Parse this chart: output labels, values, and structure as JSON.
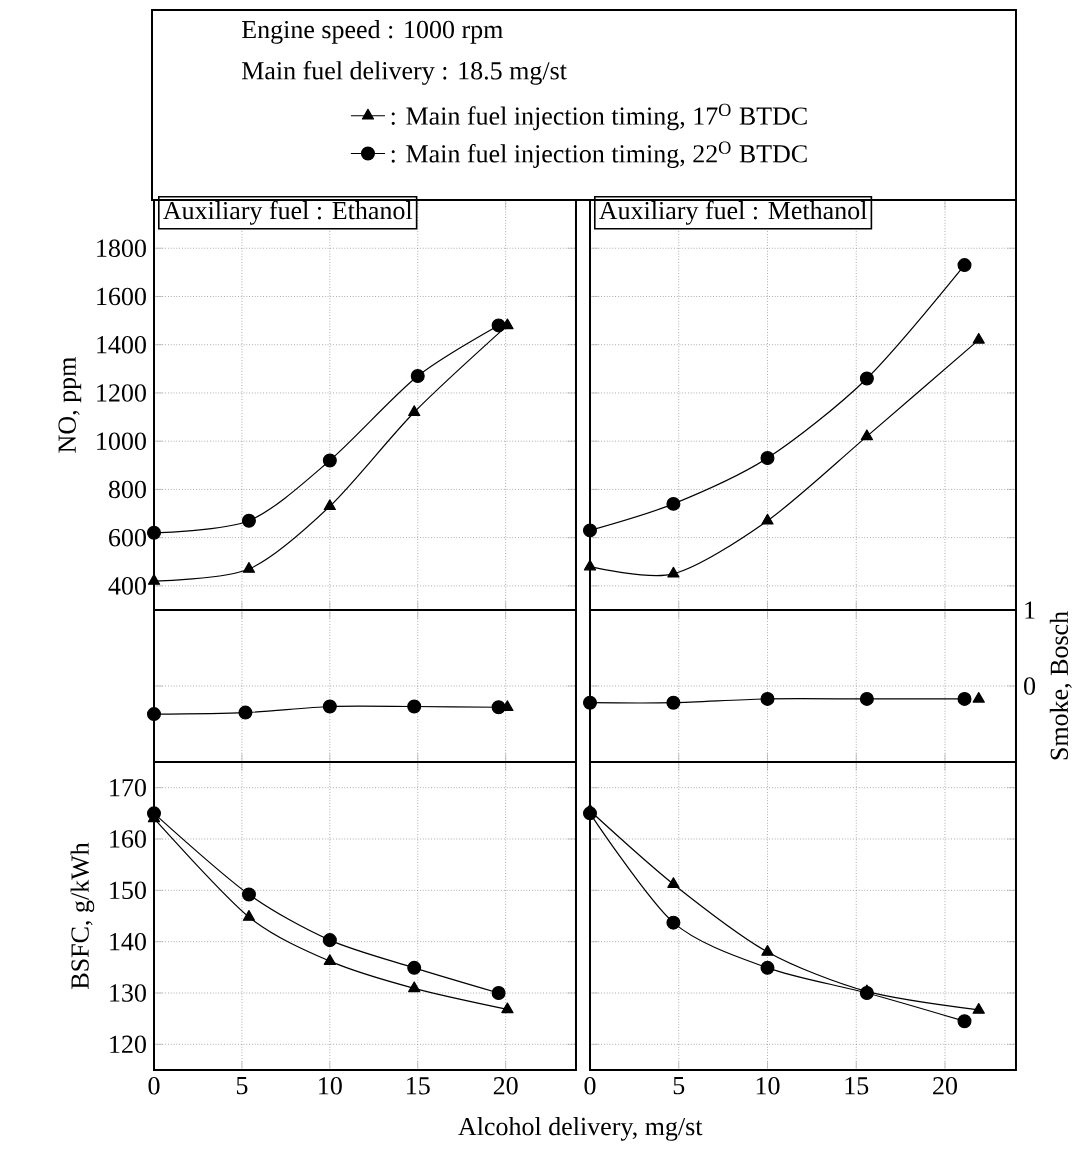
{
  "chart_data": [
    {
      "type": "line",
      "title": "Auxiliary fuel : Ethanol",
      "ylabel": "NO, ppm",
      "annotations": [
        "Engine speed : 1000 rpm",
        "Main fuel delivery : 18.5 mg/st"
      ],
      "legend": "top",
      "xlim": [
        0,
        24
      ],
      "xticks": [
        0,
        5,
        10,
        15,
        20
      ],
      "ylim": [
        300,
        2000
      ],
      "yticks": [
        400,
        600,
        800,
        1000,
        1200,
        1400,
        1600,
        1800
      ],
      "grid": true,
      "tick_labels": "y",
      "line_style": "solid",
      "series": [
        {
          "name": ": Main fuel injection timing, 17$^{O}$ BTDC",
          "color": "#000000",
          "marker": "triangle",
          "x": [
            0,
            5.4,
            10,
            14.8,
            20.1
          ],
          "values": [
            420,
            470,
            730,
            1120,
            1480
          ]
        },
        {
          "name": ": Main fuel injection timing, 22$^{O}$ BTDC",
          "color": "#000000",
          "marker": "circle",
          "x": [
            0,
            5.4,
            10,
            15,
            19.6
          ],
          "values": [
            620,
            670,
            920,
            1270,
            1480
          ]
        }
      ]
    },
    {
      "type": "line",
      "title": "Auxiliary fuel : Methanol",
      "xlim": [
        0,
        24
      ],
      "xticks": [
        0,
        5,
        10,
        15,
        20
      ],
      "ylim": [
        300,
        2000
      ],
      "yticks": [
        400,
        600,
        800,
        1000,
        1200,
        1400,
        1600,
        1800
      ],
      "grid": true,
      "tick_labels": false,
      "line_style": "solid",
      "series": [
        {
          "color": "#000000",
          "marker": "triangle",
          "x": [
            0,
            4.7,
            10,
            15.6,
            21.9
          ],
          "values": [
            480,
            450,
            670,
            1020,
            1420
          ]
        },
        {
          "color": "#000000",
          "marker": "circle",
          "x": [
            0,
            4.7,
            10,
            15.6,
            21.1
          ],
          "values": [
            630,
            740,
            930,
            1260,
            1730
          ]
        }
      ]
    },
    {
      "type": "line",
      "xlim": [
        0,
        24
      ],
      "xticks": [
        0,
        5,
        10,
        15,
        20
      ],
      "ylim": [
        -1,
        1
      ],
      "yticks": [
        0,
        1
      ],
      "grid": true,
      "tick_labels": false,
      "line_style": "solid",
      "series": [
        {
          "color": "#000000",
          "marker": "triangle",
          "x": [
            20.1
          ],
          "values": [
            -0.28
          ]
        },
        {
          "color": "#000000",
          "marker": "circle",
          "x": [
            0,
            5.2,
            10,
            14.8,
            19.6
          ],
          "values": [
            -0.37,
            -0.35,
            -0.27,
            -0.27,
            -0.28
          ]
        }
      ]
    },
    {
      "type": "line",
      "ylabel": "Smoke, Bosch",
      "xlim": [
        0,
        24
      ],
      "xticks": [
        0,
        5,
        10,
        15,
        20
      ],
      "ylim": [
        -1,
        1
      ],
      "yticks": [
        0,
        1
      ],
      "grid": true,
      "tick_labels": "y",
      "line_style": "solid",
      "series": [
        {
          "color": "#000000",
          "marker": "triangle",
          "x": [
            21.9
          ],
          "values": [
            -0.17
          ]
        },
        {
          "color": "#000000",
          "marker": "circle",
          "x": [
            0,
            4.7,
            10,
            15.6,
            21.1
          ],
          "values": [
            -0.22,
            -0.22,
            -0.17,
            -0.17,
            -0.17
          ]
        }
      ]
    },
    {
      "type": "line",
      "ylabel": "BSFC, g/kWh",
      "xlabel": "Alcohol delivery, mg/st",
      "xlim": [
        0,
        24
      ],
      "xticks": [
        0,
        5,
        10,
        15,
        20
      ],
      "ylim": [
        115,
        175
      ],
      "yticks": [
        120,
        130,
        140,
        150,
        160,
        170
      ],
      "grid": true,
      "line_style": "solid",
      "series": [
        {
          "color": "#000000",
          "marker": "triangle",
          "x": [
            0,
            5.4,
            10,
            14.8,
            20.1
          ],
          "values": [
            164,
            144.8,
            136.2,
            130.9,
            126.8
          ]
        },
        {
          "color": "#000000",
          "marker": "circle",
          "x": [
            0,
            5.4,
            10,
            14.8,
            19.6
          ],
          "values": [
            165,
            149.2,
            140.3,
            134.9,
            130
          ]
        }
      ]
    },
    {
      "type": "line",
      "xlim": [
        0,
        24
      ],
      "xticks": [
        0,
        5,
        10,
        15,
        20
      ],
      "ylim": [
        115,
        175
      ],
      "yticks": [
        120,
        130,
        140,
        150,
        160,
        170
      ],
      "grid": true,
      "tick_labels": "x",
      "line_style": "solid",
      "series": [
        {
          "color": "#000000",
          "marker": "triangle",
          "x": [
            0,
            4.7,
            10,
            15.6,
            21.9
          ],
          "values": [
            165.5,
            151.2,
            138,
            130.3,
            126.7
          ]
        },
        {
          "color": "#000000",
          "marker": "circle",
          "x": [
            0,
            4.7,
            10,
            15.6,
            21.1
          ],
          "values": [
            165,
            143.7,
            134.9,
            130,
            124.5
          ]
        }
      ]
    }
  ]
}
